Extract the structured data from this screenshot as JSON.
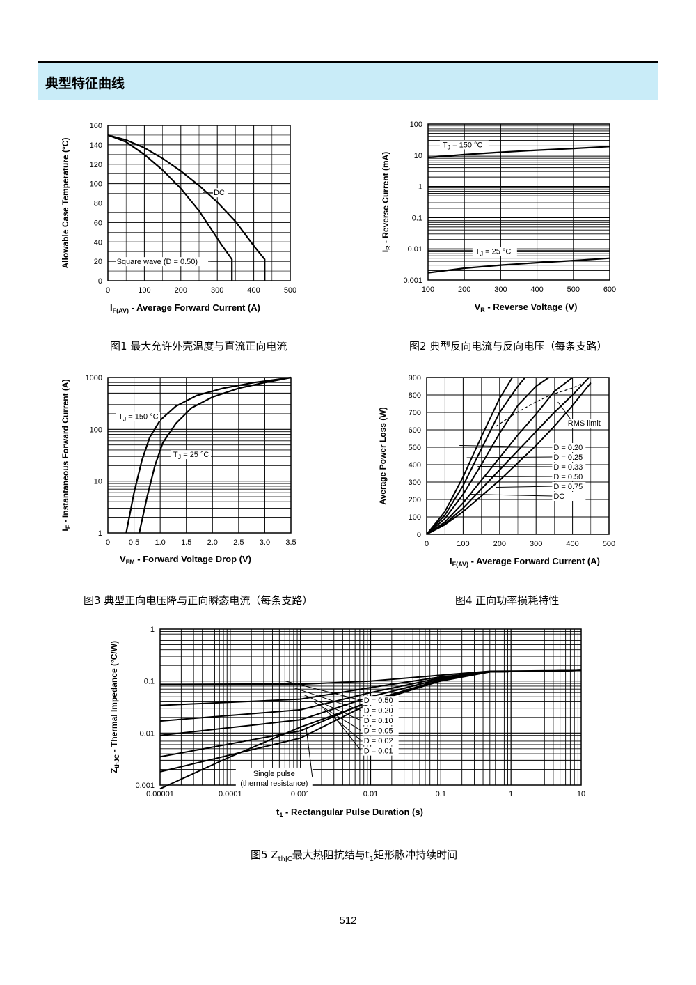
{
  "header": {
    "title": "典型特征曲线"
  },
  "chart_data": [
    {
      "type": "line",
      "xlabel_main": "I",
      "xlabel_sub": "F(AV)",
      "xlabel_rest": " - Average Forward Current (A)",
      "ylabel": "Allowable Case Temperature (°C)",
      "xlim": [
        0,
        500
      ],
      "ylim": [
        0,
        160
      ],
      "xticks": [
        "0",
        "100",
        "200",
        "300",
        "400",
        "500"
      ],
      "yticks": [
        "0",
        "20",
        "40",
        "60",
        "80",
        "100",
        "120",
        "140",
        "160"
      ],
      "series": [
        {
          "name": "DC",
          "x": [
            0,
            50,
            100,
            150,
            200,
            250,
            300,
            350,
            400,
            430,
            430
          ],
          "y": [
            150,
            145,
            137,
            126,
            113,
            98,
            81,
            61,
            36,
            22,
            0
          ]
        },
        {
          "name": "Square wave (D = 0.50)",
          "x": [
            0,
            50,
            100,
            150,
            200,
            250,
            280,
            310,
            340,
            340
          ],
          "y": [
            150,
            143,
            130,
            114,
            95,
            72,
            55,
            38,
            22,
            0
          ]
        }
      ]
    },
    {
      "type": "line",
      "yscale": "log",
      "xlabel_main": "V",
      "xlabel_sub": "R",
      "xlabel_rest": " - Reverse Voltage (V)",
      "ylabel_main": "I",
      "ylabel_sub": "R",
      "ylabel_rest": " - Reverse Current (mA)",
      "xlim": [
        100,
        600
      ],
      "ylim": [
        0.001,
        100
      ],
      "xticks": [
        "100",
        "200",
        "300",
        "400",
        "500",
        "600"
      ],
      "yticks": [
        "0.001",
        "0.01",
        "0.1",
        "1",
        "10",
        "100"
      ],
      "series": [
        {
          "name_main": "T",
          "name_sub": "J",
          "name_rest": " = 150 °C",
          "x": [
            100,
            200,
            300,
            400,
            500,
            600
          ],
          "y": [
            8.5,
            10.5,
            12.5,
            14.5,
            16.5,
            19
          ]
        },
        {
          "name_main": "T",
          "name_sub": "J",
          "name_rest": " = 25 °C",
          "x": [
            100,
            200,
            300,
            400,
            500,
            600
          ],
          "y": [
            0.0017,
            0.0024,
            0.003,
            0.0036,
            0.0042,
            0.005
          ]
        }
      ]
    },
    {
      "type": "line",
      "yscale": "log",
      "xlabel_main": "V",
      "xlabel_sub": "FM",
      "xlabel_rest": " - Forward Voltage Drop (V)",
      "ylabel_main": "I",
      "ylabel_sub": "F",
      "ylabel_rest": " - Instantaneous Forward Current (A)",
      "xlim": [
        0,
        3.5
      ],
      "ylim": [
        1,
        1000
      ],
      "xticks": [
        "0",
        "0.5",
        "1.0",
        "1.5",
        "2.0",
        "2.5",
        "3.0",
        "3.5"
      ],
      "yticks": [
        "1",
        "10",
        "100",
        "1000"
      ],
      "series": [
        {
          "name_main": "T",
          "name_sub": "J",
          "name_rest": " = 150 °C",
          "x": [
            0.35,
            0.5,
            0.65,
            0.8,
            1.0,
            1.3,
            1.7,
            2.2,
            2.8,
            3.5
          ],
          "y": [
            1,
            6,
            25,
            70,
            150,
            280,
            450,
            620,
            800,
            1000
          ]
        },
        {
          "name_main": "T",
          "name_sub": "J",
          "name_rest": " = 25 °C",
          "x": [
            0.6,
            0.75,
            0.9,
            1.05,
            1.3,
            1.6,
            2.0,
            2.5,
            3.0,
            3.5
          ],
          "y": [
            1,
            5,
            20,
            55,
            130,
            260,
            420,
            620,
            800,
            1000
          ]
        }
      ]
    },
    {
      "type": "line",
      "xlabel_main": "I",
      "xlabel_sub": "F(AV)",
      "xlabel_rest": " - Average Forward Current (A)",
      "ylabel": "Average Power Loss (W)",
      "xlim": [
        0,
        500
      ],
      "ylim": [
        0,
        900
      ],
      "xticks": [
        "0",
        "100",
        "200",
        "300",
        "400",
        "500"
      ],
      "yticks": [
        "0",
        "100",
        "200",
        "300",
        "400",
        "500",
        "600",
        "700",
        "800",
        "900"
      ],
      "annotation": "RMS limit",
      "rms_limit": {
        "x": [
          190,
          240,
          290,
          340,
          400,
          430
        ],
        "y": [
          620,
          690,
          750,
          800,
          840,
          870
        ]
      },
      "series": [
        {
          "name": "D = 0.20",
          "x": [
            0,
            50,
            100,
            150,
            200,
            235
          ],
          "y": [
            0,
            130,
            330,
            560,
            780,
            900
          ]
        },
        {
          "name": "D = 0.25",
          "x": [
            0,
            50,
            100,
            150,
            200,
            250,
            270
          ],
          "y": [
            0,
            110,
            280,
            490,
            700,
            850,
            900
          ]
        },
        {
          "name": "D = 0.33",
          "x": [
            0,
            50,
            100,
            150,
            200,
            250,
            300,
            335
          ],
          "y": [
            0,
            90,
            230,
            400,
            580,
            740,
            850,
            900
          ]
        },
        {
          "name": "D = 0.50",
          "x": [
            0,
            50,
            100,
            150,
            200,
            250,
            300,
            350,
            400
          ],
          "y": [
            0,
            70,
            180,
            310,
            440,
            570,
            690,
            820,
            900
          ]
        },
        {
          "name": "D = 0.75",
          "x": [
            0,
            50,
            100,
            150,
            200,
            250,
            300,
            350,
            400,
            445
          ],
          "y": [
            0,
            60,
            150,
            260,
            370,
            480,
            590,
            700,
            800,
            900
          ]
        },
        {
          "name": "DC",
          "x": [
            0,
            50,
            100,
            150,
            200,
            250,
            300,
            350,
            400,
            450
          ],
          "y": [
            0,
            55,
            130,
            220,
            310,
            410,
            510,
            620,
            740,
            870
          ]
        }
      ]
    },
    {
      "type": "line",
      "xscale": "log",
      "yscale": "log",
      "xlabel_main": "t",
      "xlabel_sub": "1",
      "xlabel_rest": " - Rectangular Pulse Duration (s)",
      "ylabel_main": "Z",
      "ylabel_sub": "thJC",
      "ylabel_rest": " - Thermal Impedance (°C/W)",
      "xlim": [
        1e-05,
        10
      ],
      "ylim": [
        0.001,
        1
      ],
      "xticks": [
        "0.00001",
        "0.0001",
        "0.001",
        "0.01",
        "0.1",
        "1",
        "10"
      ],
      "yticks": [
        "0.001",
        "0.01",
        "0.1",
        "1"
      ],
      "note_line1": "Single pulse",
      "note_line2": "(thermal resistance)",
      "series": [
        {
          "name": "D = 0.50",
          "x": [
            1e-05,
            0.001,
            0.01,
            0.1,
            0.5,
            10
          ],
          "y": [
            0.085,
            0.087,
            0.1,
            0.13,
            0.155,
            0.16
          ]
        },
        {
          "name": "D = 0.20",
          "x": [
            1e-05,
            0.001,
            0.01,
            0.1,
            0.5,
            10
          ],
          "y": [
            0.034,
            0.045,
            0.075,
            0.12,
            0.15,
            0.16
          ]
        },
        {
          "name": "D = 0.10",
          "x": [
            1e-05,
            0.001,
            0.01,
            0.1,
            0.5,
            10
          ],
          "y": [
            0.017,
            0.028,
            0.06,
            0.115,
            0.15,
            0.16
          ]
        },
        {
          "name": "D = 0.05",
          "x": [
            1e-05,
            0.001,
            0.01,
            0.1,
            0.5,
            10
          ],
          "y": [
            0.009,
            0.018,
            0.05,
            0.11,
            0.15,
            0.16
          ]
        },
        {
          "name": "D = 0.02",
          "x": [
            1e-05,
            0.001,
            0.01,
            0.1,
            0.5,
            10
          ],
          "y": [
            0.0035,
            0.011,
            0.042,
            0.105,
            0.15,
            0.16
          ]
        },
        {
          "name": "D = 0.01",
          "x": [
            1e-05,
            0.001,
            0.01,
            0.1,
            0.5,
            10
          ],
          "y": [
            0.0018,
            0.008,
            0.038,
            0.102,
            0.15,
            0.16
          ]
        },
        {
          "name": "Single pulse",
          "x": [
            1e-05,
            0.0001,
            0.001,
            0.01,
            0.1,
            0.5,
            10
          ],
          "y": [
            0.00085,
            0.0035,
            0.013,
            0.04,
            0.1,
            0.15,
            0.16
          ]
        }
      ]
    }
  ],
  "captions": {
    "fig1": "图1  最大允许外壳温度与直流正向电流",
    "fig2": "图2  典型反向电流与反向电压（每条支路）",
    "fig3": "图3  典型正向电压降与正向瞬态电流（每条支路）",
    "fig4": "图4  正向功率损耗特性",
    "fig5_pre": "图5 Z",
    "fig5_sub": "thJC",
    "fig5_mid": "最大热阻抗结与t",
    "fig5_sub2": "1",
    "fig5_post": "矩形脉冲持续时间"
  },
  "page_number": "512"
}
